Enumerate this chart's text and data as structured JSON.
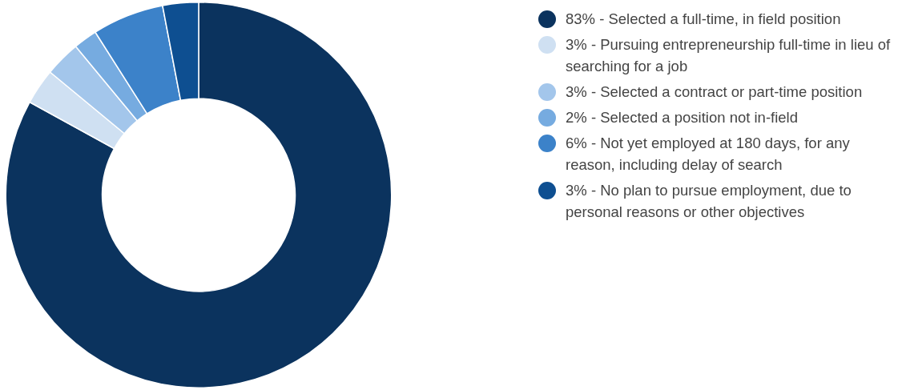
{
  "chart_data": {
    "type": "donut",
    "categories": [
      "83% - Selected a full-time, in field position",
      "3% - Pursuing entrepreneurship full-time in lieu of searching for a job",
      "3% - Selected a contract or part-time position",
      "2% - Selected a position not in-field",
      "6% - Not yet employed at 180 days, for any reason, including delay of search",
      "3% - No plan to pursue employment, due to personal reasons or other objectives"
    ],
    "values": [
      83,
      3,
      3,
      2,
      6,
      3
    ],
    "colors": [
      "#0b335e",
      "#cfe0f2",
      "#a3c6eb",
      "#76abe0",
      "#3c82c9",
      "#0e4f91"
    ],
    "legend": "right"
  }
}
